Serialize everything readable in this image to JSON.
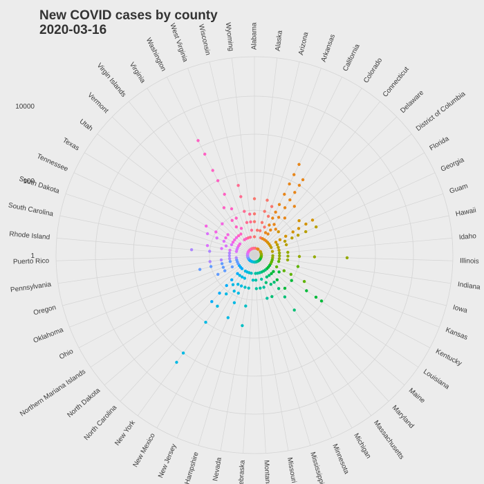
{
  "chart_data": {
    "type": "scatter",
    "coordinate_system": "polar",
    "title": "New COVID cases by county",
    "subtitle": "2020-03-16",
    "radial_scale": "log10",
    "radial_ticks": [
      "1",
      "100",
      "10000"
    ],
    "radial_tick_values": [
      1,
      100,
      10000
    ],
    "grid": true,
    "legend": "none",
    "categories": [
      "Alabama",
      "Alaska",
      "Arizona",
      "Arkansas",
      "California",
      "Colorado",
      "Connecticut",
      "Delaware",
      "District of Columbia",
      "Florida",
      "Georgia",
      "Guam",
      "Hawaii",
      "Idaho",
      "Illinois",
      "Indiana",
      "Iowa",
      "Kansas",
      "Kentucky",
      "Louisiana",
      "Maine",
      "Maryland",
      "Massachusetts",
      "Michigan",
      "Minnesota",
      "Mississippi",
      "Missouri",
      "Montana",
      "Nebraska",
      "Nevada",
      "New Hampshire",
      "New Jersey",
      "New Mexico",
      "New York",
      "North Carolina",
      "North Dakota",
      "Northern Mariana Islands",
      "Ohio",
      "Oklahoma",
      "Oregon",
      "Pennsylvania",
      "Puerto Rico",
      "Rhode Island",
      "South Carolina",
      "South Dakota",
      "Tennessee",
      "Texas",
      "Utah",
      "Vermont",
      "Virgin Islands",
      "Virginia",
      "Washington",
      "West Virginia",
      "Wisconsin",
      "Wyoming"
    ],
    "points": [
      {
        "state": "Alabama",
        "v": [
          2,
          5,
          8,
          20
        ]
      },
      {
        "state": "Alaska",
        "v": [
          1,
          3
        ]
      },
      {
        "state": "Arizona",
        "v": [
          3,
          5,
          10,
          20
        ]
      },
      {
        "state": "Arkansas",
        "v": [
          2,
          4,
          8,
          15
        ]
      },
      {
        "state": "California",
        "v": [
          1,
          2,
          3,
          5,
          8,
          12,
          20,
          40,
          80,
          150,
          300
        ]
      },
      {
        "state": "Colorado",
        "v": [
          1,
          2,
          3,
          4,
          6,
          10,
          20,
          35,
          60,
          100,
          150
        ]
      },
      {
        "state": "Connecticut",
        "v": [
          2,
          5,
          12,
          30
        ]
      },
      {
        "state": "Delaware",
        "v": [
          2,
          5
        ]
      },
      {
        "state": "District of Columbia",
        "v": [
          2,
          20
        ]
      },
      {
        "state": "Florida",
        "v": [
          1,
          2,
          3,
          4,
          6,
          10,
          15,
          25,
          40
        ]
      },
      {
        "state": "Georgia",
        "v": [
          1,
          2,
          3,
          5,
          8,
          12,
          20,
          40
        ]
      },
      {
        "state": "Guam",
        "v": [
          3,
          5
        ]
      },
      {
        "state": "Hawaii",
        "v": [
          1,
          2,
          3
        ]
      },
      {
        "state": "Idaho",
        "v": [
          1,
          3,
          5
        ]
      },
      {
        "state": "Illinois",
        "v": [
          1,
          2,
          3,
          5,
          10,
          25,
          180
        ]
      },
      {
        "state": "Indiana",
        "v": [
          1,
          2,
          3,
          5
        ]
      },
      {
        "state": "Iowa",
        "v": [
          1,
          2,
          3,
          10
        ]
      },
      {
        "state": "Kansas",
        "v": [
          1,
          2
        ]
      },
      {
        "state": "Kentucky",
        "v": [
          1,
          2,
          3,
          5,
          8,
          20
        ]
      },
      {
        "state": "Louisiana",
        "v": [
          1,
          2,
          4,
          10,
          30,
          60,
          90
        ]
      },
      {
        "state": "Maine",
        "v": [
          1,
          2,
          3
        ]
      },
      {
        "state": "Maryland",
        "v": [
          1,
          2,
          3,
          5,
          10
        ]
      },
      {
        "state": "Massachusetts",
        "v": [
          1,
          2,
          3,
          5,
          8,
          15,
          40
        ]
      },
      {
        "state": "Michigan",
        "v": [
          1,
          2,
          3,
          5
        ]
      },
      {
        "state": "Minnesota",
        "v": [
          1,
          2,
          4,
          10
        ]
      },
      {
        "state": "Mississippi",
        "v": [
          1,
          2,
          3,
          5,
          10
        ]
      },
      {
        "state": "Missouri",
        "v": [
          1,
          2,
          5
        ]
      },
      {
        "state": "Montana",
        "v": [
          1,
          2,
          3,
          5
        ]
      },
      {
        "state": "Nebraska",
        "v": [
          1,
          3
        ]
      },
      {
        "state": "Nevada",
        "v": [
          2,
          5,
          15,
          50
        ]
      },
      {
        "state": "New Hampshire",
        "v": [
          1,
          2,
          5
        ]
      },
      {
        "state": "New Jersey",
        "v": [
          1,
          2,
          3,
          5,
          8,
          15,
          40
        ]
      },
      {
        "state": "New Mexico",
        "v": [
          1,
          2,
          3,
          5,
          8
        ]
      },
      {
        "state": "New York",
        "v": [
          1,
          3,
          6,
          12,
          30,
          100,
          1000,
          2000
        ]
      },
      {
        "state": "North Carolina",
        "v": [
          1,
          2,
          3,
          5,
          8,
          15,
          30
        ]
      },
      {
        "state": "North Dakota",
        "v": [
          1,
          2
        ]
      },
      {
        "state": "Northern Mariana Islands",
        "v": [
          1,
          2
        ]
      },
      {
        "state": "Ohio",
        "v": [
          1,
          2,
          3,
          5,
          8
        ]
      },
      {
        "state": "Oklahoma",
        "v": [
          1,
          2,
          5
        ]
      },
      {
        "state": "Oregon",
        "v": [
          1,
          2,
          3,
          5,
          10,
          20
        ]
      },
      {
        "state": "Pennsylvania",
        "v": [
          1,
          2,
          3,
          5,
          10
        ]
      },
      {
        "state": "Puerto Rico",
        "v": [
          1,
          3
        ]
      },
      {
        "state": "Rhode Island",
        "v": [
          1,
          3,
          10,
          30
        ]
      },
      {
        "state": "South Carolina",
        "v": [
          1,
          2,
          3,
          5,
          12
        ]
      },
      {
        "state": "South Dakota",
        "v": [
          1,
          2,
          4
        ]
      },
      {
        "state": "Tennessee",
        "v": [
          1,
          2,
          3,
          5,
          8,
          15
        ]
      },
      {
        "state": "Texas",
        "v": [
          1,
          2,
          3,
          5,
          10,
          20
        ]
      },
      {
        "state": "Utah",
        "v": [
          1,
          2,
          3,
          5
        ]
      },
      {
        "state": "Vermont",
        "v": [
          1,
          3,
          10
        ]
      },
      {
        "state": "Virgin Islands",
        "v": [
          1,
          3
        ]
      },
      {
        "state": "Virginia",
        "v": [
          1,
          2,
          3,
          5,
          8,
          20
        ]
      },
      {
        "state": "Washington",
        "v": [
          1,
          2,
          4,
          8,
          15,
          40,
          100,
          200,
          600,
          1500
        ]
      },
      {
        "state": "West Virginia",
        "v": [
          1,
          2
        ]
      },
      {
        "state": "Wisconsin",
        "v": [
          1,
          2,
          5,
          10,
          25,
          50
        ]
      },
      {
        "state": "Wyoming",
        "v": [
          1,
          3,
          5,
          8
        ]
      }
    ],
    "palette": [
      "#f8766d",
      "#e7861a",
      "#d39200",
      "#b79f00",
      "#93aa00",
      "#5eb300",
      "#00ba38",
      "#00bf74",
      "#00c19f",
      "#00bfc4",
      "#00b9e3",
      "#00adfa",
      "#619cff",
      "#ae87ff",
      "#db72fb",
      "#f564e3",
      "#ff61c3",
      "#ff6c91"
    ]
  }
}
